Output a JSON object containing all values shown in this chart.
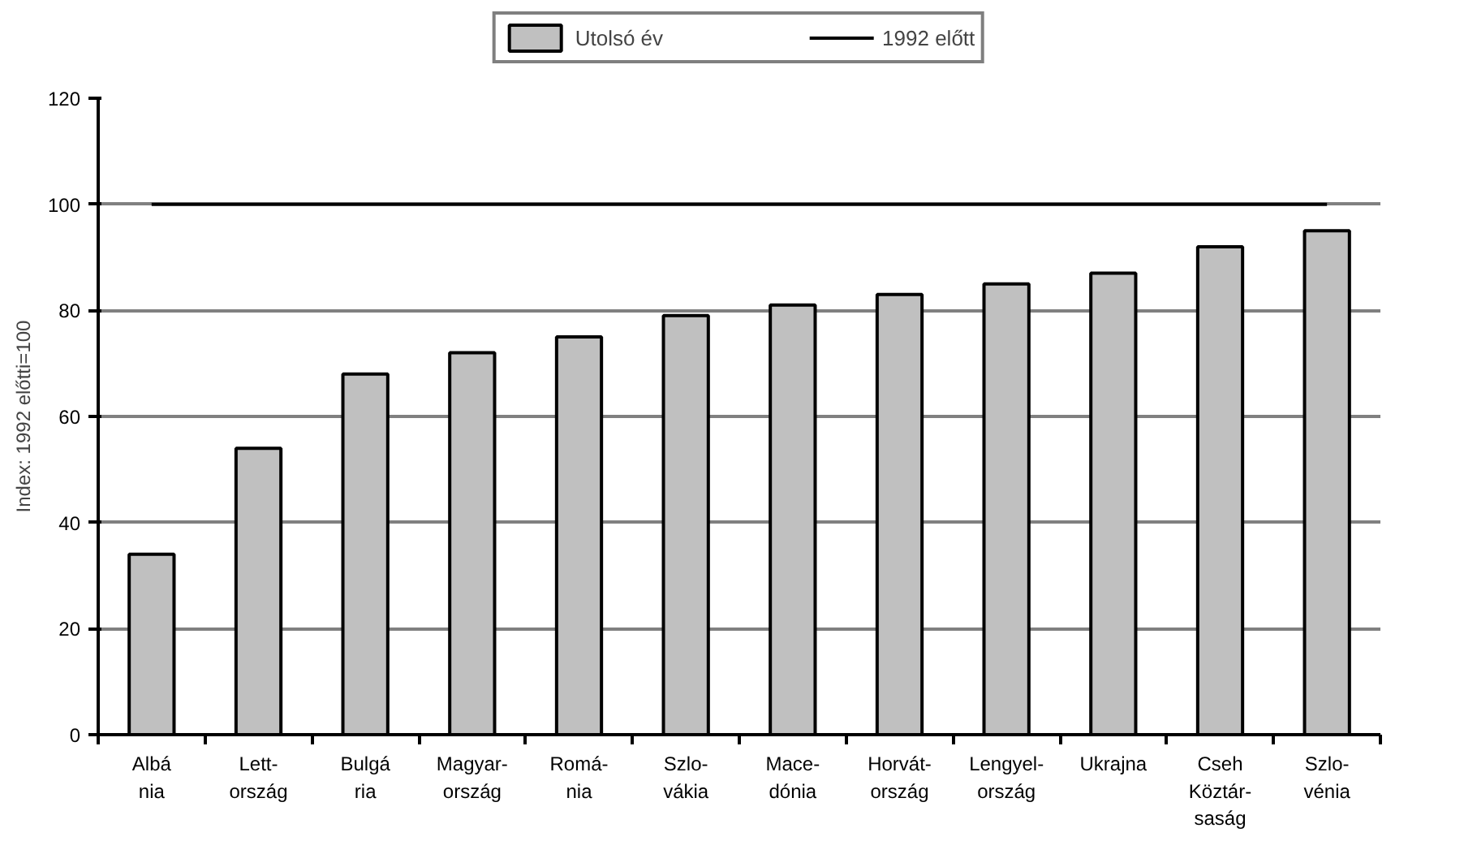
{
  "chart_data": {
    "type": "bar",
    "ylabel": "Index: 1992 előtti=100",
    "categories": [
      "Albá\nnia",
      "Lett-\nország",
      "Bulgá\nria",
      "Magyar-\nország",
      "Romá-\nnia",
      "Szlo-\nvákia",
      "Mace-\ndónia",
      "Horvát-\nország",
      "Lengyel-\nország",
      "Ukrajna",
      "Cseh\nKöztár-\nsaság",
      "Szlo-\nvénia"
    ],
    "series": [
      {
        "name": "Utolsó év",
        "color": "#c0c0c0",
        "values": [
          34,
          54,
          68,
          72,
          75,
          79,
          81,
          83,
          85,
          87,
          92,
          95
        ]
      },
      {
        "name": "1992 előtt",
        "type": "line",
        "color": "#000000",
        "values": [
          100,
          100,
          100,
          100,
          100,
          100,
          100,
          100,
          100,
          100,
          100,
          100
        ]
      }
    ],
    "ylim": [
      0,
      120
    ],
    "yticks": [
      0,
      20,
      40,
      60,
      80,
      100,
      120
    ],
    "grid": "y",
    "legend": "top"
  }
}
